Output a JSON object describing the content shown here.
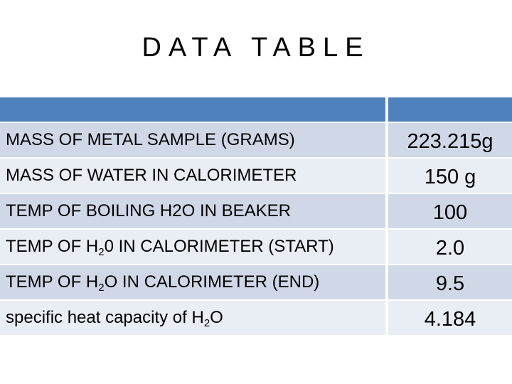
{
  "title": "DATA TABLE",
  "header": {
    "col1": "",
    "col2": ""
  },
  "rows": [
    {
      "label_pre": "MASS OF METAL SAMPLE (GRAMS)",
      "label_sub": "",
      "label_post": "",
      "value": "223.215g"
    },
    {
      "label_pre": "MASS OF WATER IN CALORIMETER",
      "label_sub": "",
      "label_post": "",
      "value": "150 g"
    },
    {
      "label_pre": "TEMP OF BOILING H2O IN BEAKER",
      "label_sub": "",
      "label_post": "",
      "value": "100"
    },
    {
      "label_pre": "TEMP OF H",
      "label_sub": "2",
      "label_post": "0 IN CALORIMETER (START)",
      "value": "2.0"
    },
    {
      "label_pre": "TEMP OF H",
      "label_sub": "2",
      "label_post": "O IN CALORIMETER (END)",
      "value": "9.5"
    },
    {
      "label_pre": "specific heat capacity of H",
      "label_sub": "2",
      "label_post": "O",
      "value": "4.184"
    }
  ]
}
